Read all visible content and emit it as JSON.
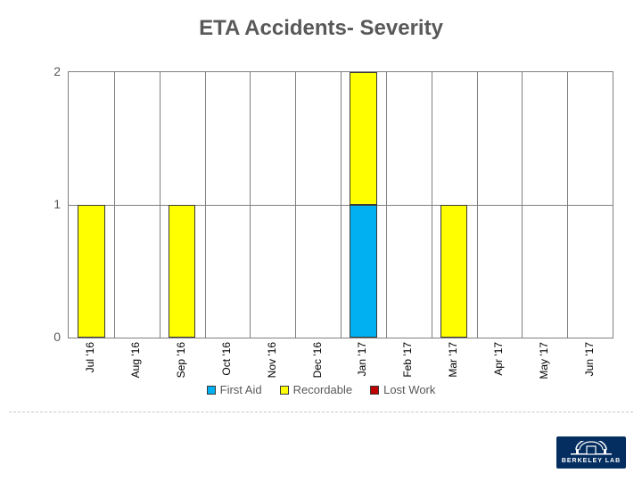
{
  "title": {
    "text": "ETA Accidents-  Severity",
    "fontsize": 24,
    "color": "#595959"
  },
  "chart": {
    "type": "stacked-bar",
    "background_color": "#ffffff",
    "border_color": "#808080",
    "grid_color": "#808080",
    "ylim": [
      0,
      2
    ],
    "ytick_step": 1,
    "yticks": [
      0,
      1,
      2
    ],
    "y_label_fontsize": 14,
    "y_label_color": "#595959",
    "bar_width_ratio": 0.6,
    "categories": [
      "Jul '16",
      "Aug '16",
      "Sep '16",
      "Oct '16",
      "Nov '16",
      "Dec '16",
      "Jan '17",
      "Feb '17",
      "Mar '17",
      "Apr '17",
      "May '17",
      "Jun '17"
    ],
    "x_label_fontsize": 12,
    "x_label_color": "#000000",
    "series": [
      {
        "name": "First Aid",
        "color": "#00B0F0"
      },
      {
        "name": "Recordable",
        "color": "#FFFF00"
      },
      {
        "name": "Lost Work",
        "color": "#C00000"
      }
    ],
    "data": {
      "First Aid": [
        0,
        0,
        0,
        0,
        0,
        0,
        1,
        0,
        0,
        0,
        0,
        0
      ],
      "Recordable": [
        1,
        0,
        1,
        0,
        0,
        0,
        1,
        0,
        1,
        0,
        0,
        0
      ],
      "Lost Work": [
        0,
        0,
        0,
        0,
        0,
        0,
        0,
        0,
        0,
        0,
        0,
        0
      ]
    }
  },
  "legend": {
    "fontsize": 13,
    "color": "#595959",
    "items": [
      {
        "label": "First Aid",
        "color": "#00B0F0"
      },
      {
        "label": "Recordable",
        "color": "#FFFF00"
      },
      {
        "label": "Lost Work",
        "color": "#C00000"
      }
    ]
  },
  "logo": {
    "text": "BERKELEY LAB",
    "bg": "#042E60",
    "fg": "#ffffff"
  }
}
